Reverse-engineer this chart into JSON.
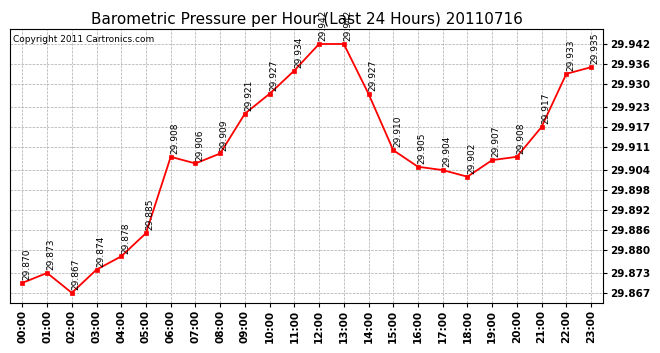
{
  "title": "Barometric Pressure per Hour (Last 24 Hours) 20110716",
  "copyright": "Copyright 2011 Cartronics.com",
  "hours": [
    "00:00",
    "01:00",
    "02:00",
    "03:00",
    "04:00",
    "05:00",
    "06:00",
    "07:00",
    "08:00",
    "09:00",
    "10:00",
    "11:00",
    "12:00",
    "13:00",
    "14:00",
    "15:00",
    "16:00",
    "17:00",
    "18:00",
    "19:00",
    "20:00",
    "21:00",
    "22:00",
    "23:00"
  ],
  "values": [
    29.87,
    29.873,
    29.867,
    29.874,
    29.878,
    29.885,
    29.908,
    29.906,
    29.909,
    29.921,
    29.927,
    29.934,
    29.942,
    29.942,
    29.927,
    29.91,
    29.905,
    29.904,
    29.902,
    29.907,
    29.908,
    29.917,
    29.933,
    29.935
  ],
  "line_color": "#ff0000",
  "marker_color": "#ff0000",
  "background_color": "#ffffff",
  "grid_color": "#aaaaaa",
  "ylim_min": 29.864,
  "ylim_max": 29.9465,
  "ytick_values": [
    29.867,
    29.873,
    29.88,
    29.886,
    29.892,
    29.898,
    29.904,
    29.911,
    29.917,
    29.923,
    29.93,
    29.936,
    29.942
  ],
  "title_fontsize": 11,
  "label_fontsize": 6.5,
  "copyright_fontsize": 6.5,
  "tick_fontsize": 7.5
}
